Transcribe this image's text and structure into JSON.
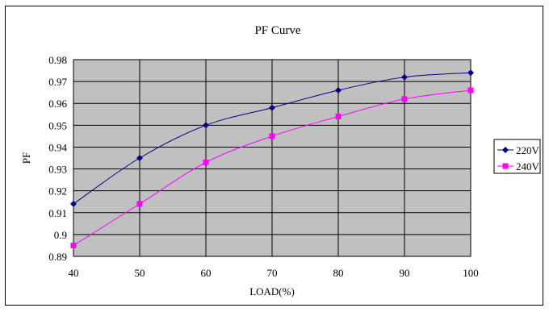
{
  "chart_data": {
    "type": "line",
    "title": "PF Curve",
    "xlabel": "LOAD(%)",
    "ylabel": "PF",
    "x": [
      40,
      50,
      60,
      70,
      80,
      90,
      100
    ],
    "xlim": [
      40,
      100
    ],
    "ylim": [
      0.89,
      0.98
    ],
    "xticks": [
      "40",
      "50",
      "60",
      "70",
      "80",
      "90",
      "100"
    ],
    "yticks": [
      "0.89",
      "0.9",
      "0.91",
      "0.92",
      "0.93",
      "0.94",
      "0.95",
      "0.96",
      "0.97",
      "0.98"
    ],
    "grid": true,
    "legend_position": "right",
    "plot_background": "#c0c0c0",
    "series": [
      {
        "name": "220V",
        "color": "#000080",
        "marker": "diamond",
        "values": [
          0.914,
          0.935,
          0.95,
          0.958,
          0.966,
          0.972,
          0.974
        ]
      },
      {
        "name": "240V",
        "color": "#ff00ff",
        "marker": "square",
        "values": [
          0.895,
          0.914,
          0.933,
          0.945,
          0.954,
          0.962,
          0.966
        ]
      }
    ]
  }
}
